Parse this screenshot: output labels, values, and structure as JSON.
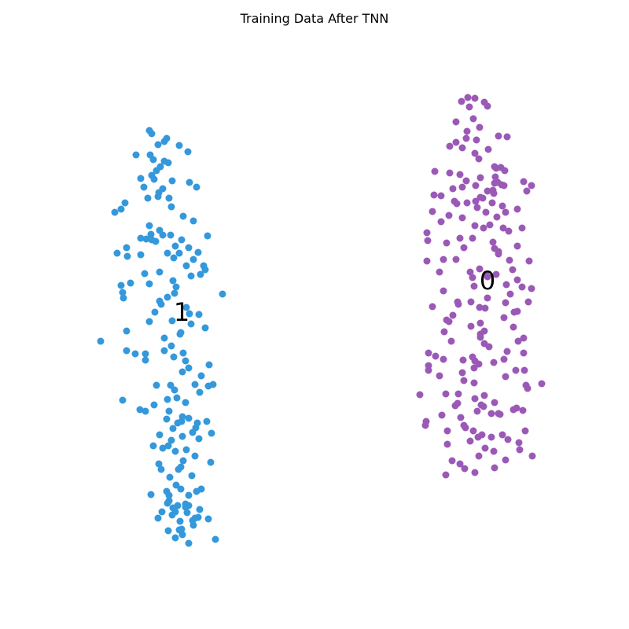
{
  "chart_data": {
    "type": "scatter",
    "title": "Training Data After TNN",
    "xlabel": "",
    "ylabel": "",
    "axes_visible": false,
    "grid": false,
    "legend": "none",
    "series": [
      {
        "name": "1",
        "color": "#3498db",
        "x": [
          190,
          193,
          212,
          209,
          201,
          228,
          239,
          173,
          191,
          195,
          209,
          214,
          204,
          199,
          193,
          179,
          196,
          219,
          241,
          250,
          183,
          207,
          202,
          201,
          188,
          215,
          159,
          154,
          146,
          218,
          233,
          246,
          190,
          203,
          192,
          179,
          207,
          217,
          193,
          231,
          264,
          198,
          186,
          223,
          240,
          228,
          252,
          149,
          179,
          161,
          162,
          213,
          221,
          246,
          237,
          259,
          261,
          255,
          203,
          184,
          243,
          220,
          166,
          154,
          156,
          190,
          224,
          213,
          222,
          283,
          157,
          203,
          205,
          237,
          197,
          241,
          253,
          190,
          219,
          243,
          261,
          230,
          161,
          128,
          161,
          229,
          209,
          218,
          185,
          209,
          233,
          172,
          221,
          185,
          236,
          266,
          240,
          232,
          256,
          248,
          217,
          199,
          265,
          271,
          222,
          254,
          213,
          225,
          236,
          156,
          178,
          185,
          212,
          196,
          215,
          232,
          231,
          251,
          240,
          263,
          226,
          249,
          220,
          245,
          269,
          203,
          232,
          253,
          218,
          214,
          237,
          195,
          207,
          223,
          202,
          248,
          233,
          205,
          230,
          244,
          268,
          227,
          216,
          224,
          250,
          256,
          240,
          192,
          215,
          213,
          236,
          240,
          236,
          206,
          220,
          238,
          254,
          223,
          248,
          265,
          229,
          219,
          201,
          245,
          246,
          252,
          214,
          223,
          232,
          274,
          240,
          231,
          228,
          226,
          215,
          212,
          230
        ],
        "y": [
          166,
          170,
          176,
          180,
          184,
          185,
          193,
          197,
          197,
          203,
          205,
          207,
          212,
          217,
          223,
          227,
          228,
          230,
          232,
          238,
          238,
          240,
          245,
          250,
          252,
          252,
          258,
          266,
          270,
          263,
          275,
          281,
          287,
          293,
          298,
          303,
          299,
          299,
          305,
          305,
          300,
          307,
          304,
          313,
          315,
          322,
          321,
          322,
          324,
          315,
          326,
          322,
          328,
          330,
          338,
          338,
          343,
          349,
          346,
          348,
          351,
          357,
          360,
          363,
          372,
          361,
          365,
          378,
          373,
          374,
          379,
          383,
          387,
          391,
          397,
          399,
          400,
          409,
          408,
          412,
          417,
          423,
          421,
          434,
          446,
          425,
          430,
          440,
          450,
          446,
          449,
          450,
          454,
          458,
          459,
          464,
          468,
          473,
          478,
          489,
          490,
          490,
          491,
          489,
          496,
          499,
          508,
          506,
          512,
          509,
          521,
          523,
          533,
          515,
          523,
          530,
          536,
          538,
          532,
          536,
          538,
          544,
          545,
          550,
          551,
          553,
          555,
          558,
          560,
          567,
          572,
          567,
          570,
          574,
          590,
          580,
          586,
          597,
          594,
          605,
          588,
          597,
          607,
          617,
          625,
          622,
          630,
          629,
          637,
          640,
          641,
          643,
          645,
          651,
          646,
          652,
          648,
          651,
          659,
          660,
          663,
          655,
          659,
          662,
          668,
          658,
          675,
          684,
          680,
          686,
          691,
          673,
          674,
          643,
          630,
          625,
          622
        ],
        "marker_label": "1"
      },
      {
        "name": "0",
        "color": "#9b59b6",
        "x": [
          595,
          604,
          587,
          616,
          620,
          597,
          602,
          580,
          610,
          594,
          634,
          645,
          593,
          606,
          580,
          572,
          588,
          621,
          604,
          609,
          629,
          637,
          642,
          553,
          572,
          585,
          611,
          593,
          629,
          666,
          588,
          605,
          576,
          620,
          670,
          552,
          561,
          578,
          607,
          594,
          581,
          639,
          626,
          550,
          571,
          588,
          632,
          658,
          618,
          604,
          561,
          543,
          615,
          647,
          544,
          568,
          585,
          601,
          590,
          658,
          634,
          629,
          648,
          580,
          564,
          610,
          543,
          673,
          559,
          618,
          598,
          601,
          631,
          644,
          658,
          664,
          676,
          620,
          564,
          649,
          672,
          583,
          550,
          599,
          617,
          610,
          654,
          643,
          576,
          641,
          568,
          571,
          599,
          653,
          611,
          565,
          611,
          666,
          574,
          659,
          622,
          666,
          545,
          554,
          589,
          564,
          628,
          545,
          609,
          604,
          603,
          656,
          545,
          643,
          689,
          559,
          671,
          603,
          590,
          567,
          583,
          669,
          616,
          629,
          534,
          657,
          582,
          615,
          562,
          604,
          612,
          579,
          607,
          625,
          653,
          665,
          586,
          636,
          542,
          592,
          541,
          569,
          668,
          590,
          602,
          613,
          639,
          660,
          569,
          617,
          628,
          609,
          643,
          677,
          575,
          585,
          629,
          591,
          604,
          567,
          661,
          608,
          598,
          646,
          625,
          634,
          667,
          588,
          641,
          601,
          645,
          616,
          616,
          611,
          658,
          582,
          603,
          620,
          652,
          634,
          627,
          640,
          664,
          623,
          643,
          614,
          628,
          611,
          605,
          627,
          641,
          676,
          638,
          633,
          630,
          631
        ],
        "y": [
          124,
          125,
          129,
          130,
          135,
          136,
          151,
          155,
          162,
          167,
          173,
          174,
          176,
          178,
          181,
          186,
          188,
          190,
          195,
          202,
          212,
          213,
          217,
          218,
          220,
          222,
          226,
          230,
          233,
          231,
          238,
          236,
          240,
          243,
          243,
          248,
          249,
          256,
          264,
          258,
          259,
          262,
          258,
          269,
          274,
          277,
          276,
          266,
          270,
          287,
          282,
          296,
          290,
          294,
          306,
          309,
          303,
          303,
          315,
          313,
          320,
          316,
          331,
          330,
          330,
          342,
          332,
          332,
          346,
          349,
          346,
          353,
          349,
          362,
          356,
          365,
          367,
          379,
          370,
          374,
          384,
          387,
          390,
          384,
          392,
          391,
          397,
          385,
          401,
          404,
          407,
          409,
          415,
          416,
          425,
          422,
          429,
          430,
          434,
          434,
          441,
          449,
          449,
          453,
          458,
          457,
          461,
          465,
          463,
          459,
          468,
          471,
          471,
          479,
          488,
          478,
          494,
          487,
          484,
          501,
          501,
          490,
          503,
          512,
          502,
          519,
          513,
          517,
          528,
          507,
          515,
          516,
          523,
          526,
          521,
          522,
          531,
          527,
          536,
          544,
          541,
          548,
          548,
          541,
          548,
          553,
          553,
          563,
          565,
          570,
          574,
          580,
          585,
          580,
          586,
          590,
          595,
          596,
          601,
          604,
          572,
          556,
          561,
          559,
          556,
          526,
          471,
          474,
          457,
          454,
          447,
          437,
          421,
          411,
          396,
          384,
          364,
          352,
          343,
          323,
          308,
          290,
          290,
          286,
          270,
          252,
          246,
          251,
          256,
          242,
          236,
          236,
          235,
          232,
          225,
          214
        ],
        "marker_label": "0"
      }
    ],
    "annotations": [
      {
        "text": "1",
        "x": 231,
        "y": 397
      },
      {
        "text": "0",
        "x": 620,
        "y": 357
      }
    ]
  }
}
